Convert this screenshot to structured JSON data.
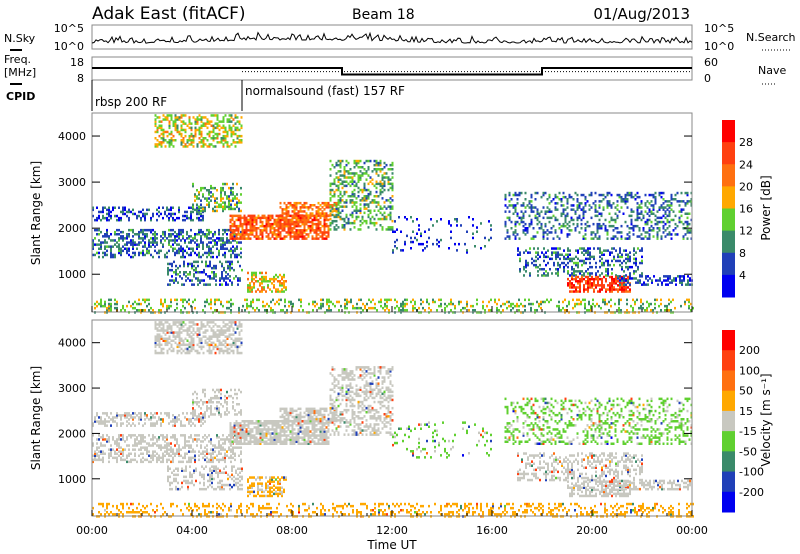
{
  "header": {
    "title": "Adak East (fitACF)",
    "beam": "Beam 18",
    "date": "01/Aug/2013"
  },
  "nsky": {
    "label": "N.Sky",
    "right_label": "N.Search",
    "ticks": [
      "10^5",
      "10^0"
    ]
  },
  "freq": {
    "label_line1": "Freq.",
    "label_line2": "[MHz]",
    "ticks": [
      "18",
      "8"
    ],
    "right_ticks": [
      "60",
      "0"
    ],
    "right_label": "Nave"
  },
  "cpid": {
    "label": "CPID",
    "segments": [
      {
        "text": "rbsp 200 RF",
        "start_h": 0
      },
      {
        "text": "normalsound (fast) 157 RF",
        "start_h": 6
      }
    ]
  },
  "chart_data": {
    "type": "heatmap",
    "x_label": "Time UT",
    "x_ticks": [
      "00:00",
      "04:00",
      "08:00",
      "12:00",
      "16:00",
      "20:00",
      "00:00"
    ],
    "xlim_hours": [
      0,
      24
    ],
    "y_label": "Slant Range [km]",
    "y_ticks": [
      "1000",
      "2000",
      "3000",
      "4000"
    ],
    "ylim_km": [
      180,
      4500
    ],
    "frequency_mhz": [
      {
        "from_h": 0,
        "to_h": 10,
        "value": 13.2
      },
      {
        "from_h": 10,
        "to_h": 18,
        "value": 10.4
      },
      {
        "from_h": 18,
        "to_h": 24,
        "value": 13.2
      }
    ],
    "nave": [
      {
        "from_h": 0,
        "to_h": 6,
        "value": 30
      },
      {
        "from_h": 6,
        "to_h": 24,
        "value": 22
      }
    ],
    "power_scale": {
      "label": "Power [dB]",
      "ticks": [
        "4",
        "8",
        "12",
        "16",
        "20",
        "24",
        "28"
      ],
      "colors": [
        "#0000f0",
        "#2040b8",
        "#3a8a6a",
        "#60d030",
        "#ffa800",
        "#ff7010",
        "#ff4010",
        "#ff0000"
      ]
    },
    "velocity_scale": {
      "label": "Velocity [m s⁻¹]",
      "ticks": [
        "200",
        "100",
        "50",
        "15",
        "-15",
        "-50",
        "-100",
        "-200"
      ],
      "colors": [
        "#0000f0",
        "#2040b8",
        "#3a8a6a",
        "#60d030",
        "#c8c8c0",
        "#ffa800",
        "#ff7010",
        "#ff4010",
        "#ff0000"
      ]
    },
    "echo_regions": [
      {
        "t": [
          2.5,
          6
        ],
        "r": [
          3800,
          4500
        ],
        "power": 16,
        "vel": 0,
        "density": 0.5
      },
      {
        "t": [
          0,
          6
        ],
        "r": [
          1400,
          2000
        ],
        "power": 8,
        "vel": 0,
        "density": 0.45
      },
      {
        "t": [
          0,
          4.5
        ],
        "r": [
          2200,
          2500
        ],
        "power": 6,
        "vel": 0,
        "density": 0.4
      },
      {
        "t": [
          4,
          6
        ],
        "r": [
          2400,
          3000
        ],
        "power": 12,
        "vel": 0,
        "density": 0.35
      },
      {
        "t": [
          5.5,
          9.5
        ],
        "r": [
          1800,
          2300
        ],
        "power": 24,
        "vel": 0,
        "density": 0.75
      },
      {
        "t": [
          7.5,
          9.8
        ],
        "r": [
          2300,
          2600
        ],
        "power": 22,
        "vel": 0,
        "density": 0.6
      },
      {
        "t": [
          6.2,
          7.8
        ],
        "r": [
          650,
          1100
        ],
        "power": 18,
        "vel": -20,
        "density": 0.55
      },
      {
        "t": [
          3,
          6
        ],
        "r": [
          800,
          1300
        ],
        "power": 8,
        "vel": 0,
        "density": 0.35
      },
      {
        "t": [
          9.5,
          12
        ],
        "r": [
          2000,
          3500
        ],
        "power": 12,
        "vel": 0,
        "density": 0.4
      },
      {
        "t": [
          12,
          16
        ],
        "r": [
          1500,
          2300
        ],
        "power": 4,
        "vel": 20,
        "density": 0.1
      },
      {
        "t": [
          16.5,
          24
        ],
        "r": [
          1800,
          2800
        ],
        "power": 8,
        "vel": 20,
        "density": 0.3
      },
      {
        "t": [
          17,
          22
        ],
        "r": [
          1000,
          1600
        ],
        "power": 8,
        "vel": 0,
        "density": 0.35
      },
      {
        "t": [
          19,
          21.5
        ],
        "r": [
          650,
          1000
        ],
        "power": 26,
        "vel": 0,
        "density": 0.6
      },
      {
        "t": [
          21,
          24
        ],
        "r": [
          800,
          1000
        ],
        "power": 6,
        "vel": 0,
        "density": 0.5
      },
      {
        "t": [
          0,
          24
        ],
        "r": [
          200,
          500
        ],
        "power": 14,
        "vel": -30,
        "density": 0.3
      }
    ]
  }
}
